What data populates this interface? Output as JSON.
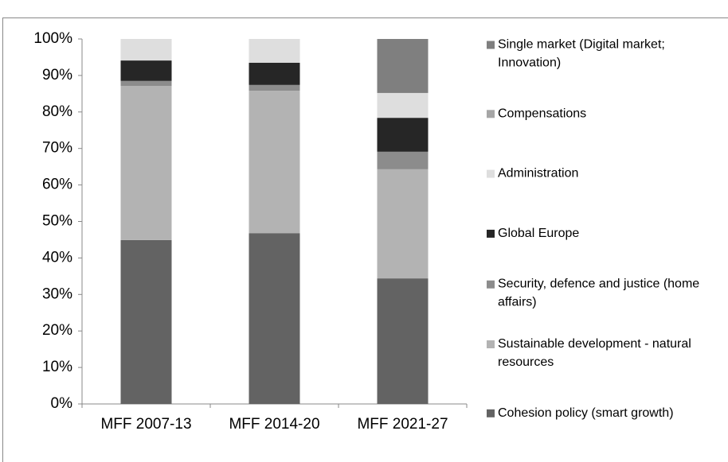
{
  "chart_data": {
    "type": "stacked_bar_percent",
    "categories": [
      "MFF 2007-13",
      "MFF 2014-20",
      "MFF 2021-27"
    ],
    "series": [
      {
        "name": "Cohesion policy (smart growth)",
        "color": "#636363",
        "values": [
          44.9,
          46.8,
          34.4
        ]
      },
      {
        "name": "Sustainable development - natural resources",
        "color": "#b3b3b3",
        "values": [
          42.2,
          39.0,
          29.9
        ]
      },
      {
        "name": "Security, defence and justice (home affairs)",
        "color": "#8c8c8c",
        "values": [
          1.4,
          1.6,
          4.8
        ]
      },
      {
        "name": "Global Europe",
        "color": "#262626",
        "values": [
          5.6,
          6.1,
          9.3
        ]
      },
      {
        "name": "Administration",
        "color": "#dedede",
        "values": [
          5.9,
          6.5,
          6.8
        ]
      },
      {
        "name": "Compensations",
        "color": "#a6a6a6",
        "values": [
          0,
          0,
          0
        ]
      },
      {
        "name": "Single market (Digital market; Innovation)",
        "color": "#7f7f7f",
        "values": [
          0,
          0,
          14.8
        ]
      }
    ],
    "ylim": [
      0,
      100
    ],
    "yticks": [
      {
        "value": 0,
        "label": "0%"
      },
      {
        "value": 10,
        "label": "10%"
      },
      {
        "value": 20,
        "label": "20%"
      },
      {
        "value": 30,
        "label": "30%"
      },
      {
        "value": 40,
        "label": "40%"
      },
      {
        "value": 50,
        "label": "50%"
      },
      {
        "value": 60,
        "label": "60%"
      },
      {
        "value": 70,
        "label": "70%"
      },
      {
        "value": 80,
        "label": "80%"
      },
      {
        "value": 90,
        "label": "90%"
      },
      {
        "value": 100,
        "label": "100%"
      }
    ],
    "legend": "right"
  }
}
